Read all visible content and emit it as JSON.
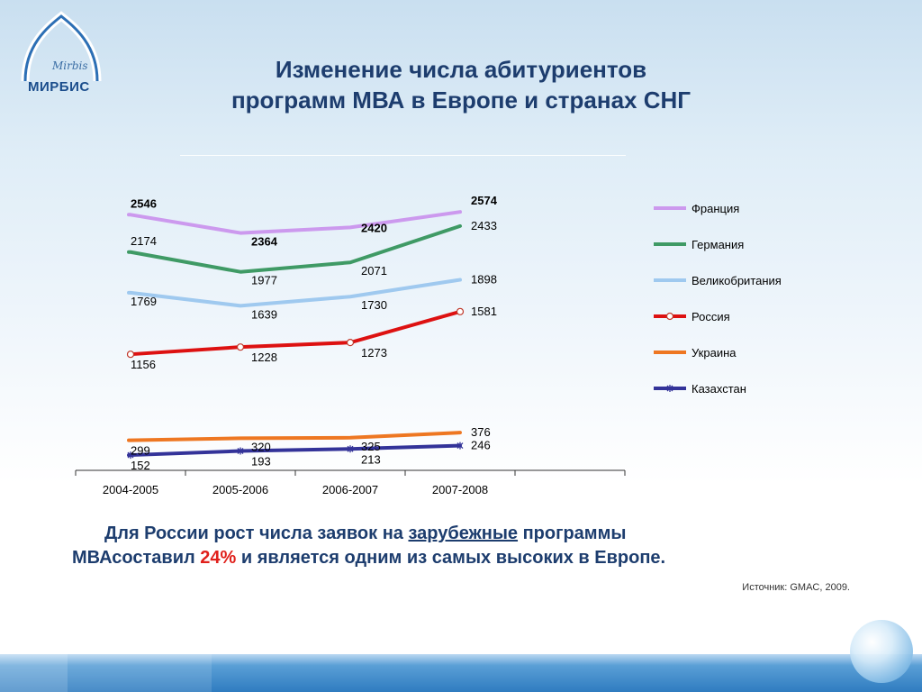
{
  "logo": {
    "script": "Mirbis",
    "name": "МИРБИС"
  },
  "title": {
    "line1": "Изменение числа абитуриентов",
    "line2": "программ МВА в Европе и странах СНГ"
  },
  "chart_data": {
    "type": "line",
    "categories": [
      "2004-2005",
      "2005-2006",
      "2006-2007",
      "2007-2008"
    ],
    "ylim": [
      0,
      2800
    ],
    "grid": false,
    "legend_position": "right",
    "series": [
      {
        "name": "Франция",
        "values": [
          2546,
          2364,
          2420,
          2574
        ],
        "color": "#cc99ee",
        "marker": "none"
      },
      {
        "name": "Германия",
        "values": [
          2174,
          1977,
          2071,
          2433
        ],
        "color": "#3f9a65",
        "marker": "none"
      },
      {
        "name": "Великобритания",
        "values": [
          1769,
          1639,
          1730,
          1898
        ],
        "color": "#9fc9ef",
        "marker": "none"
      },
      {
        "name": "Россия",
        "values": [
          1156,
          1228,
          1273,
          1581
        ],
        "color": "#dd1111",
        "marker": "circle"
      },
      {
        "name": "Украина",
        "values": [
          299,
          320,
          325,
          376
        ],
        "color": "#ee7722",
        "marker": "none"
      },
      {
        "name": "Казахстан",
        "values": [
          152,
          193,
          213,
          246
        ],
        "color": "#333399",
        "marker": "star"
      }
    ]
  },
  "caption": {
    "part1": "Для России рост числа заявок на ",
    "underlined": "зарубежные",
    "part2": " программы",
    "part3": "МВАсоставил ",
    "percent": "24%",
    "part4": " и является одним из самых  высоких в Европе."
  },
  "source": "Источник: GMAC, 2009."
}
